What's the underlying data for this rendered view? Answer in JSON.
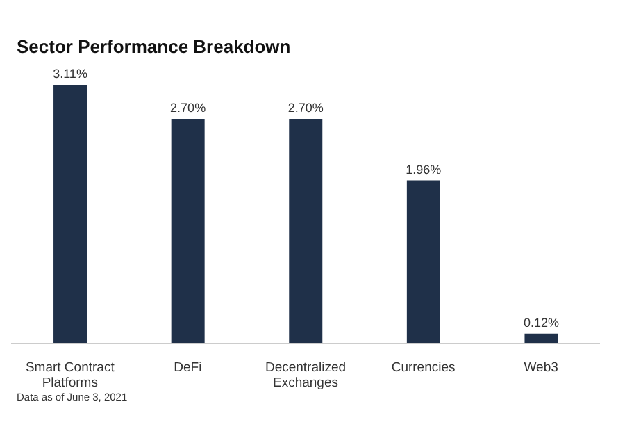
{
  "chart_data": {
    "type": "bar",
    "title": "Sector Performance Breakdown",
    "categories": [
      "Smart Contract Platforms",
      "DeFi",
      "Decentralized Exchanges",
      "Currencies",
      "Web3"
    ],
    "values": [
      3.11,
      2.7,
      2.7,
      1.96,
      0.12
    ],
    "value_labels": [
      "3.11%",
      "2.70%",
      "2.70%",
      "1.96%",
      "0.12%"
    ],
    "color": "#1f3049",
    "annotations": [
      "Data as of June 3, 2021"
    ]
  }
}
